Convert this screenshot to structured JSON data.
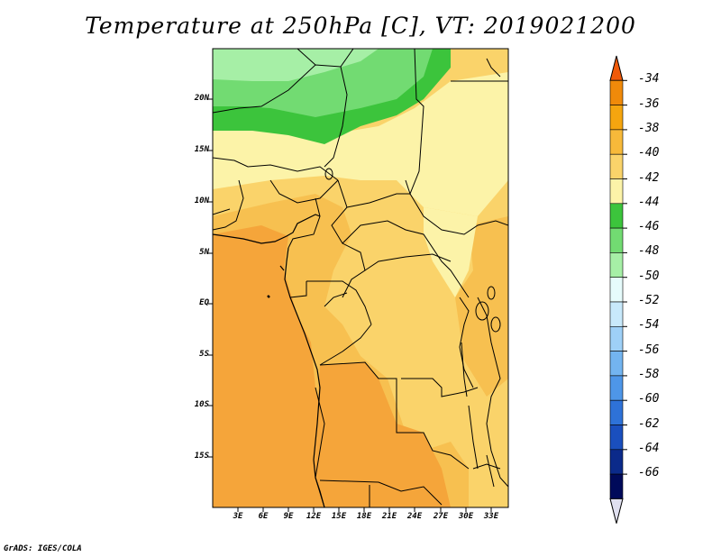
{
  "title": "Temperature at 250hPa [C], VT: 2019021200",
  "credit": "GrADS: IGES/COLA",
  "lat_labels": [
    "20N",
    "15N",
    "10N",
    "5N",
    "EQ",
    "5S",
    "10S",
    "15S"
  ],
  "lon_labels": [
    "3E",
    "6E",
    "9E",
    "12E",
    "15E",
    "18E",
    "21E",
    "24E",
    "27E",
    "30E",
    "33E"
  ],
  "colorbar": {
    "labels": [
      "-34",
      "-36",
      "-38",
      "-40",
      "-42",
      "-44",
      "-46",
      "-48",
      "-50",
      "-52",
      "-54",
      "-56",
      "-58",
      "-60",
      "-62",
      "-64",
      "-66"
    ],
    "colors": [
      "#f05a0a",
      "#f08a0a",
      "#f5a50f",
      "#f7b93a",
      "#fad36a",
      "#fcf3a8",
      "#3cc43c",
      "#72db72",
      "#a6efa6",
      "#e6fbfb",
      "#c8e9fb",
      "#9ed0f7",
      "#73b4f0",
      "#4e96e8",
      "#2e72d8",
      "#1a4fbe",
      "#0b2a8a",
      "#000a5a",
      "#e0e0f0"
    ]
  },
  "map_colors": {
    "dark_orange": "#f5a53a",
    "mid_orange": "#f7c050",
    "light_orange": "#fad36a",
    "pale_yellow": "#fcf3a8",
    "green_dark": "#3cc43c",
    "green_mid": "#72db72",
    "green_light": "#a6efa6"
  }
}
